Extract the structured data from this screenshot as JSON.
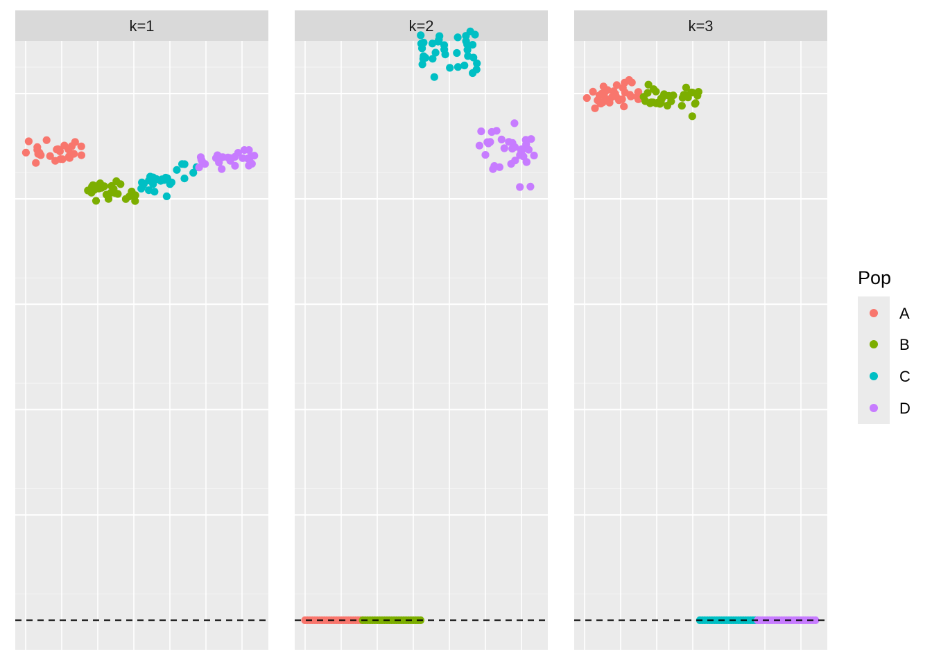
{
  "chart_data": {
    "type": "scatter",
    "facet_by": "k",
    "legend": {
      "title": "Pop",
      "position": "right",
      "entries": [
        "A",
        "B",
        "C",
        "D"
      ]
    },
    "colors": {
      "A": "#F8766D",
      "B": "#7CAE00",
      "C": "#00BFC4",
      "D": "#C77CFF"
    },
    "xlim": [
      0,
      7
    ],
    "ylim": [
      -0.28,
      5.5
    ],
    "reference_line": {
      "y": 0,
      "style": "dashed"
    },
    "x_ticks_visible": false,
    "y_ticks_visible": false,
    "panels": [
      {
        "strip": "k=1",
        "groups": [
          {
            "pop": "A",
            "n": 25,
            "x_range": [
              0.0,
              1.7
            ],
            "y_start": 4.45,
            "y_end": 4.45,
            "y_jitter": 0.05
          },
          {
            "pop": "B",
            "n": 25,
            "x_range": [
              1.6,
              3.2
            ],
            "y_start": 4.1,
            "y_end": 4.05,
            "y_jitter": 0.05
          },
          {
            "pop": "C",
            "n": 25,
            "x_range": [
              3.2,
              4.8
            ],
            "y_start": 4.15,
            "y_end": 4.3,
            "y_jitter": 0.05
          },
          {
            "pop": "D",
            "n": 25,
            "x_range": [
              4.8,
              6.4
            ],
            "y_start": 4.35,
            "y_end": 4.4,
            "y_jitter": 0.05
          }
        ]
      },
      {
        "strip": "k=2",
        "groups": [
          {
            "pop": "A",
            "n": 25,
            "x_range": [
              0.0,
              1.6
            ],
            "y_start": 0,
            "y_end": 0,
            "y_jitter": 0
          },
          {
            "pop": "B",
            "n": 25,
            "x_range": [
              1.6,
              3.2
            ],
            "y_start": 0,
            "y_end": 0,
            "y_jitter": 0
          },
          {
            "pop": "C",
            "n": 35,
            "x_range": [
              3.2,
              4.8
            ],
            "y_start": 5.4,
            "y_end": 5.4,
            "y_jitter": 0.13
          },
          {
            "pop": "D",
            "n": 35,
            "x_range": [
              4.8,
              6.4
            ],
            "y_start": 4.45,
            "y_end": 4.45,
            "y_jitter": 0.13
          }
        ]
      },
      {
        "strip": "k=3",
        "groups": [
          {
            "pop": "A",
            "n": 35,
            "x_range": [
              0.0,
              1.6
            ],
            "y_start": 4.98,
            "y_end": 4.98,
            "y_jitter": 0.06
          },
          {
            "pop": "B",
            "n": 35,
            "x_range": [
              1.6,
              3.2
            ],
            "y_start": 4.97,
            "y_end": 4.97,
            "y_jitter": 0.06
          },
          {
            "pop": "C",
            "n": 25,
            "x_range": [
              3.2,
              4.8
            ],
            "y_start": 0,
            "y_end": 0,
            "y_jitter": 0
          },
          {
            "pop": "D",
            "n": 25,
            "x_range": [
              4.8,
              6.4
            ],
            "y_start": 0,
            "y_end": 0,
            "y_jitter": 0
          }
        ]
      }
    ]
  }
}
